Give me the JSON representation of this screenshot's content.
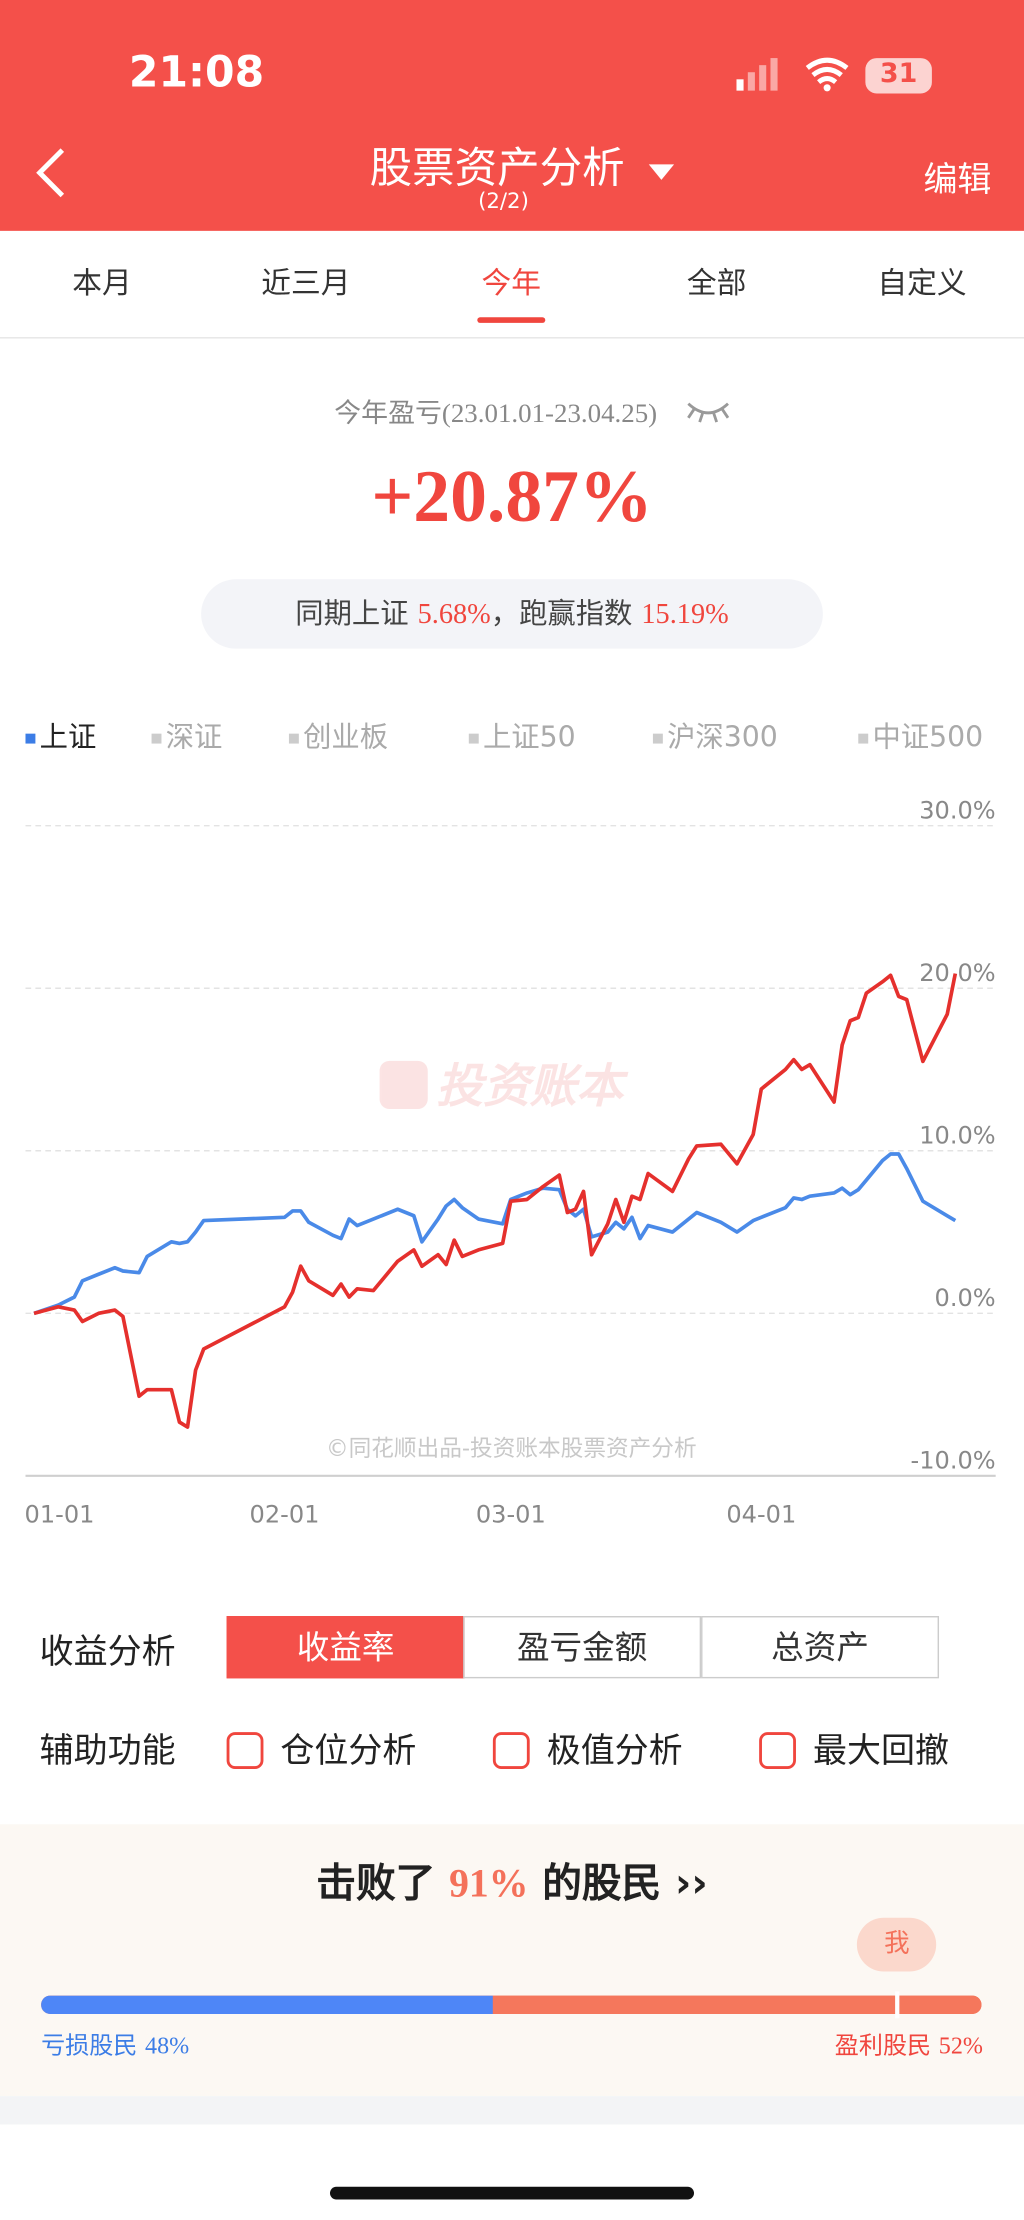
{
  "status_bar": {
    "time": "21:08",
    "battery": "31"
  },
  "header": {
    "title": "股票资产分析",
    "subtitle": "(2/2)",
    "action": "编辑"
  },
  "tabs": {
    "items": [
      "本月",
      "近三月",
      "今年",
      "全部",
      "自定义"
    ],
    "active": 2
  },
  "summary": {
    "label": "今年盈亏(23.01.01-23.04.25)",
    "value": "+20.87%",
    "compare": {
      "prefix": "同期上证",
      "index_return": "5.68%",
      "sep": "，跑赢指数",
      "excess": "15.19%"
    }
  },
  "chart_data": {
    "type": "line",
    "indices": [
      "上证",
      "深证",
      "创业板",
      "上证50",
      "沪深300",
      "中证500"
    ],
    "selected_index": 0,
    "watermark": "投资账本",
    "credit": "©同花顺出品-投资账本股票资产分析",
    "x": [
      "01-01",
      "01-04",
      "01-06",
      "01-07",
      "01-09",
      "01-11",
      "01-12",
      "01-14",
      "01-15",
      "01-18",
      "01-19",
      "01-20",
      "01-21",
      "01-22",
      "02-01",
      "02-02",
      "02-03",
      "02-04",
      "02-07",
      "02-08",
      "02-09",
      "02-10",
      "02-12",
      "02-15",
      "02-17",
      "02-18",
      "02-20",
      "02-21",
      "02-22",
      "02-23",
      "02-25",
      "02-28",
      "03-01",
      "03-03",
      "03-05",
      "03-07",
      "03-08",
      "03-09",
      "03-10",
      "03-11",
      "03-13",
      "03-14",
      "03-15",
      "03-16",
      "03-17",
      "03-18",
      "03-21",
      "03-23",
      "03-24",
      "03-27",
      "03-29",
      "03-31",
      "04-01",
      "04-04",
      "04-05",
      "04-06",
      "04-07",
      "04-10",
      "04-11",
      "04-12",
      "04-13",
      "04-14",
      "04-16",
      "04-17",
      "04-18",
      "04-19",
      "04-21",
      "04-24",
      "04-25"
    ],
    "xlim": [
      "01-01",
      "04-30"
    ],
    "xticks": [
      "01-01",
      "02-01",
      "03-01",
      "04-01"
    ],
    "ylim": [
      -10,
      30
    ],
    "yticks": [
      {
        "value": -10,
        "label": "-10.0%"
      },
      {
        "value": 0,
        "label": "0.0%"
      },
      {
        "value": 10,
        "label": "10.0%"
      },
      {
        "value": 20,
        "label": "20.0%"
      },
      {
        "value": 30,
        "label": "30.0%"
      }
    ],
    "grid": true,
    "series": [
      {
        "color": "#e5302d",
        "values": [
          0,
          0.4,
          0.2,
          -0.5,
          0,
          0.2,
          -0.2,
          -5.1,
          -4.7,
          -4.7,
          -6.7,
          -7.0,
          -3.5,
          -2.2,
          0.4,
          1.3,
          2.9,
          2.0,
          1.1,
          1.8,
          1.0,
          1.5,
          1.4,
          3.2,
          3.9,
          2.9,
          3.6,
          3.0,
          4.5,
          3.5,
          3.9,
          4.3,
          6.9,
          7.0,
          7.8,
          8.5,
          6.2,
          6.4,
          7.5,
          3.6,
          5.5,
          7.0,
          5.6,
          7.2,
          7.0,
          8.6,
          7.5,
          9.5,
          10.3,
          10.4,
          9.2,
          11.0,
          13.8,
          15.0,
          15.6,
          15.0,
          15.3,
          13.0,
          16.5,
          18.0,
          18.2,
          19.7,
          20.4,
          20.8,
          19.5,
          19.3,
          15.5,
          18.4,
          20.9
        ]
      },
      {
        "color": "#4a8ae8",
        "values": [
          0,
          0.5,
          1.0,
          2.0,
          2.4,
          2.8,
          2.6,
          2.5,
          3.5,
          4.4,
          4.3,
          4.4,
          5.0,
          5.7,
          5.9,
          6.3,
          6.3,
          5.6,
          4.8,
          4.6,
          5.8,
          5.4,
          5.8,
          6.4,
          6.0,
          4.4,
          5.8,
          6.6,
          7.0,
          6.5,
          5.8,
          5.5,
          7.0,
          7.4,
          7.7,
          7.6,
          6.4,
          6.0,
          6.4,
          4.7,
          5.0,
          5.6,
          5.2,
          5.9,
          4.6,
          5.4,
          5.0,
          5.8,
          6.2,
          5.6,
          5.0,
          5.7,
          5.9,
          6.5,
          7.1,
          7.0,
          7.2,
          7.4,
          7.7,
          7.3,
          7.6,
          8.2,
          9.4,
          9.8,
          9.8,
          8.9,
          6.9,
          6.0,
          5.7
        ]
      }
    ]
  },
  "analysis": {
    "label": "收益分析",
    "options": [
      "收益率",
      "盈亏金额",
      "总资产"
    ],
    "active": 0
  },
  "aux": {
    "label": "辅助功能",
    "options": [
      "仓位分析",
      "极值分析",
      "最大回撤"
    ]
  },
  "rank": {
    "prefix": "击败了",
    "percent": {
      "value": 91,
      "label": "91%"
    },
    "suffix": "的股民",
    "me": "我",
    "loss": {
      "name": "亏损股民",
      "share": {
        "value": 48,
        "label": "48%"
      }
    },
    "profit": {
      "name": "盈利股民",
      "share": {
        "value": 52,
        "label": "52%"
      }
    }
  }
}
